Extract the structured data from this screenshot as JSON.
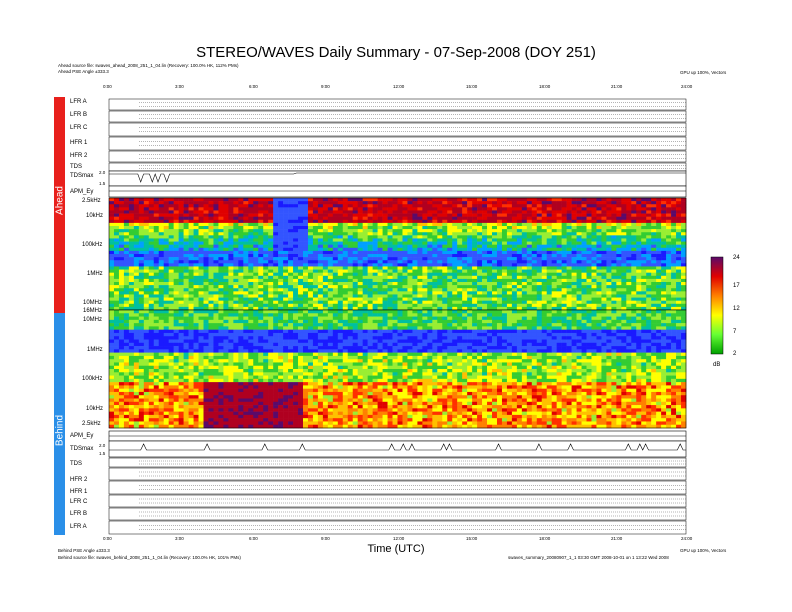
{
  "title": "STEREO/WAVES Daily Summary - 07-Sep-2008 (DOY 251)",
  "header": {
    "ahead_source": "Ahead source file: swaves_ahead_2008_251_1_04.lin (Recovery: 100.0% HK, 112% PMs)",
    "ahead_angle": "Ahead PSE Angle ±333.3",
    "version_top": "GPU up 100%, Vectors"
  },
  "footer": {
    "behind_angle": "Behind PSE Angle ±333.3",
    "behind_source": "Behind source file: swaves_behind_2008_251_1_04.lin (Recovery: 100.0% HK, 101% PMs)",
    "version_bottom": "GPU up 100%, Vectors",
    "program_info": "swaves_summary_20080907_1_1 03:30 GMT 2008-10-01 on 1 13:22 Wed 2008"
  },
  "xlabel": "Time (UTC)",
  "time_ticks": [
    "0:00",
    "3:00",
    "6:00",
    "9:00",
    "12:00",
    "15:00",
    "18:00",
    "21:00",
    "24:00"
  ],
  "side_labels": {
    "ahead": "Ahead",
    "behind": "Behind"
  },
  "ahead_rows": [
    "LFR A",
    "LFR B",
    "LFR C",
    "HFR 1",
    "HFR 2",
    "TDS",
    "TDSmax",
    "APM_Ey"
  ],
  "ahead_freq_labels": [
    "2.5kHz",
    "10kHz",
    "100kHz",
    "1MHz",
    "10MHz"
  ],
  "behind_freq_labels": [
    "16MHz",
    "10MHz",
    "1MHz",
    "100kHz",
    "10kHz",
    "2.5kHz"
  ],
  "behind_rows": [
    "APM_Ey",
    "TDSmax",
    "TDS",
    "HFR 2",
    "HFR 1",
    "LFR C",
    "LFR B",
    "LFR A"
  ],
  "tdsmax_ticks": [
    "2.0",
    "1.5"
  ],
  "colorbar": {
    "ticks": [
      "24",
      "17",
      "12",
      "7",
      "2"
    ],
    "unit": "dB"
  },
  "colors": {
    "ahead": "#e8201c",
    "behind": "#2a8fe8"
  },
  "chart_data": {
    "type": "heatmap",
    "title": "STEREO/WAVES Daily Summary - 07-Sep-2008 (DOY 251)",
    "xlabel": "Time (UTC)",
    "xlim": [
      0,
      24
    ],
    "colorbar_range_db": [
      2,
      24
    ],
    "panels": [
      {
        "name": "Ahead",
        "ylim": [
          "2.5kHz",
          "16MHz"
        ],
        "y_ticks": [
          "2.5kHz",
          "10kHz",
          "100kHz",
          "1MHz",
          "10MHz"
        ],
        "notes": "intense emission above 2.5 MHz; broad low-intensity gap near 6:45-8:15 UTC"
      },
      {
        "name": "Behind",
        "ylim": [
          "2.5kHz",
          "16MHz"
        ],
        "y_ticks": [
          "16MHz",
          "10MHz",
          "1MHz",
          "100kHz",
          "10kHz",
          "2.5kHz"
        ],
        "notes": "strong low-frequency emission around 4:00-8:00 UTC below 100 kHz"
      }
    ]
  }
}
